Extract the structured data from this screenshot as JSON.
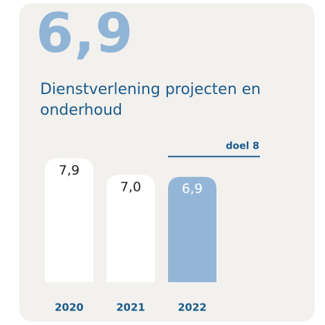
{
  "chart_data": {
    "type": "bar",
    "headline": "6,9",
    "title": "Dienstverlening projecten en onderhoud",
    "categories": [
      "2020",
      "2021",
      "2022"
    ],
    "values": [
      7.9,
      7.0,
      6.9
    ],
    "value_labels": [
      "7,9",
      "7,0",
      "6,9"
    ],
    "colors": [
      "#ffffff",
      "#ffffff",
      "#94b6d6"
    ],
    "label_colors": [
      "#222222",
      "#222222",
      "#ffffff"
    ],
    "goal": {
      "value": 8,
      "label": "doel 8"
    },
    "ylim": [
      1.2,
      8.5
    ]
  }
}
